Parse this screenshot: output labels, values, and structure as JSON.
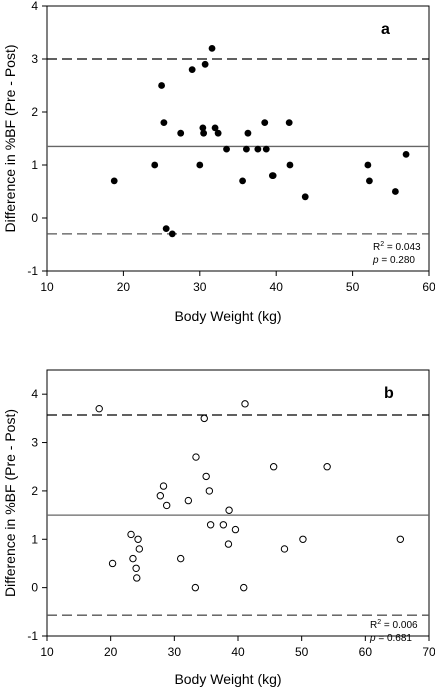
{
  "chart_data": [
    {
      "type": "scatter",
      "panel_label": "a",
      "xlabel": "Body Weight (kg)",
      "ylabel": "Difference in %BF (Pre - Post)",
      "xlim": [
        10,
        60
      ],
      "ylim": [
        -1,
        4
      ],
      "xticks": [
        "10",
        "20",
        "30",
        "40",
        "50",
        "60"
      ],
      "yticks": [
        "-1",
        "0",
        "1",
        "2",
        "3",
        "4"
      ],
      "marker": "filled-circle",
      "mean_line": 1.35,
      "limit_lines": [
        3.0,
        -0.3
      ],
      "stats": {
        "r2_label": "R",
        "r2_sup": "2",
        "r2_value": "= 0.043",
        "p_label": "p",
        "p_value": "= 0.280"
      },
      "points": [
        [
          18.8,
          0.7
        ],
        [
          24.1,
          1.0
        ],
        [
          25.0,
          2.5
        ],
        [
          25.3,
          1.8
        ],
        [
          25.6,
          -0.2
        ],
        [
          26.4,
          -0.3
        ],
        [
          27.5,
          1.6
        ],
        [
          29.0,
          2.8
        ],
        [
          30.0,
          1.0
        ],
        [
          30.4,
          1.7
        ],
        [
          30.5,
          1.6
        ],
        [
          30.7,
          2.9
        ],
        [
          31.6,
          3.2
        ],
        [
          32.0,
          1.7
        ],
        [
          32.4,
          1.6
        ],
        [
          33.5,
          1.3
        ],
        [
          35.6,
          0.7
        ],
        [
          36.1,
          1.3
        ],
        [
          36.3,
          1.6
        ],
        [
          37.6,
          1.3
        ],
        [
          38.5,
          1.8
        ],
        [
          38.7,
          1.3
        ],
        [
          39.5,
          0.8
        ],
        [
          39.6,
          0.8
        ],
        [
          41.7,
          1.8
        ],
        [
          41.8,
          1.0
        ],
        [
          43.8,
          0.4
        ],
        [
          52.0,
          1.0
        ],
        [
          52.2,
          0.7
        ],
        [
          55.6,
          0.5
        ],
        [
          57.0,
          1.2
        ]
      ]
    },
    {
      "type": "scatter",
      "panel_label": "b",
      "xlabel": "Body Weight (kg)",
      "ylabel": "Difference in %BF (Pre - Post)",
      "xlim": [
        10,
        70
      ],
      "ylim": [
        -1,
        4.5
      ],
      "xticks": [
        "10",
        "20",
        "30",
        "40",
        "50",
        "60",
        "70"
      ],
      "yticks": [
        "-1",
        "0",
        "1",
        "2",
        "3",
        "4"
      ],
      "marker": "open-circle",
      "mean_line": 1.5,
      "limit_lines": [
        3.57,
        -0.57
      ],
      "stats": {
        "r2_label": "R",
        "r2_sup": "2",
        "r2_value": "= 0.006",
        "p_label": "p",
        "p_value": "= 0.681"
      },
      "points": [
        [
          18.2,
          3.7
        ],
        [
          20.3,
          0.5
        ],
        [
          23.2,
          1.1
        ],
        [
          23.5,
          0.6
        ],
        [
          24.0,
          0.4
        ],
        [
          24.1,
          0.2
        ],
        [
          24.3,
          1.0
        ],
        [
          24.5,
          0.8
        ],
        [
          27.8,
          1.9
        ],
        [
          28.3,
          2.1
        ],
        [
          28.8,
          1.7
        ],
        [
          31.0,
          0.6
        ],
        [
          32.2,
          1.8
        ],
        [
          33.3,
          0.0
        ],
        [
          33.4,
          2.7
        ],
        [
          34.7,
          3.5
        ],
        [
          35.0,
          2.3
        ],
        [
          35.5,
          2.0
        ],
        [
          35.7,
          1.3
        ],
        [
          37.7,
          1.3
        ],
        [
          38.5,
          0.9
        ],
        [
          38.6,
          1.6
        ],
        [
          39.6,
          1.2
        ],
        [
          40.9,
          0.0
        ],
        [
          41.1,
          3.8
        ],
        [
          45.6,
          2.5
        ],
        [
          47.3,
          0.8
        ],
        [
          50.2,
          1.0
        ],
        [
          54.0,
          2.5
        ],
        [
          65.5,
          1.0
        ]
      ]
    }
  ]
}
